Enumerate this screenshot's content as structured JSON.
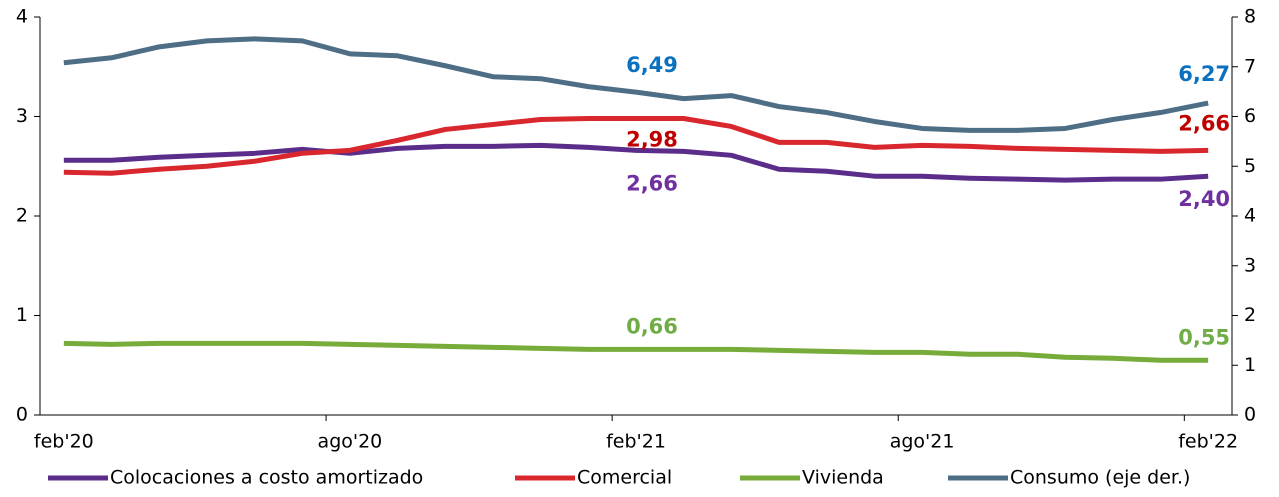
{
  "chart_data": {
    "type": "line",
    "categories": [
      "feb'20",
      null,
      null,
      null,
      null,
      null,
      "ago'20",
      null,
      null,
      null,
      null,
      null,
      "feb'21",
      null,
      null,
      null,
      null,
      null,
      "ago'21",
      null,
      null,
      null,
      null,
      null,
      "feb'22"
    ],
    "ylim": [
      0,
      4
    ],
    "yticks": [
      0,
      1,
      2,
      3,
      4
    ],
    "y2lim": [
      0,
      8
    ],
    "y2ticks": [
      0,
      1,
      2,
      3,
      4,
      5,
      6,
      7,
      8
    ],
    "series": [
      {
        "name": "Colocaciones a costo amortizado",
        "color": "#5b2d8a",
        "label_color": "#7030a0",
        "values": [
          2.56,
          2.56,
          2.59,
          2.61,
          2.63,
          2.67,
          2.63,
          2.68,
          2.7,
          2.7,
          2.71,
          2.69,
          2.66,
          2.65,
          2.61,
          2.47,
          2.45,
          2.4,
          2.4,
          2.38,
          2.37,
          2.36,
          2.37,
          2.37,
          2.4
        ],
        "value_labels": [
          null,
          null,
          null,
          null,
          null,
          null,
          null,
          null,
          null,
          null,
          null,
          null,
          "2,66",
          null,
          null,
          null,
          null,
          null,
          null,
          null,
          null,
          null,
          null,
          null,
          "2,40"
        ]
      },
      {
        "name": "Comercial",
        "color": "#d9272e",
        "label_color": "#c00000",
        "values": [
          2.44,
          2.43,
          2.47,
          2.5,
          2.55,
          2.63,
          2.66,
          2.76,
          2.87,
          2.92,
          2.97,
          2.98,
          2.98,
          2.98,
          2.9,
          2.74,
          2.74,
          2.69,
          2.71,
          2.7,
          2.68,
          2.67,
          2.66,
          2.65,
          2.66
        ],
        "value_labels": [
          null,
          null,
          null,
          null,
          null,
          null,
          null,
          null,
          null,
          null,
          null,
          null,
          "2,98",
          null,
          null,
          null,
          null,
          null,
          null,
          null,
          null,
          null,
          null,
          null,
          "2,66"
        ]
      },
      {
        "name": "Vivienda",
        "color": "#77ab3a",
        "label_color": "#70ad47",
        "values": [
          0.72,
          0.71,
          0.72,
          0.72,
          0.72,
          0.72,
          0.71,
          0.7,
          0.69,
          0.68,
          0.67,
          0.66,
          0.66,
          0.66,
          0.66,
          0.65,
          0.64,
          0.63,
          0.63,
          0.61,
          0.61,
          0.58,
          0.57,
          0.55,
          0.55
        ],
        "value_labels": [
          null,
          null,
          null,
          null,
          null,
          null,
          null,
          null,
          null,
          null,
          null,
          null,
          "0,66",
          null,
          null,
          null,
          null,
          null,
          null,
          null,
          null,
          null,
          null,
          null,
          "0,55"
        ]
      },
      {
        "name": "Consumo (eje der.)",
        "color": "#4e6e86",
        "label_color": "#0a70c0",
        "axis": "y2",
        "values": [
          7.08,
          7.18,
          7.4,
          7.52,
          7.56,
          7.52,
          7.26,
          7.22,
          7.02,
          6.8,
          6.76,
          6.6,
          6.49,
          6.36,
          6.42,
          6.2,
          6.08,
          5.9,
          5.76,
          5.72,
          5.72,
          5.76,
          5.94,
          6.08,
          6.27
        ],
        "value_labels": [
          null,
          null,
          null,
          null,
          null,
          null,
          null,
          null,
          null,
          null,
          null,
          null,
          "6,49",
          null,
          null,
          null,
          null,
          null,
          null,
          null,
          null,
          null,
          null,
          null,
          "6,27"
        ]
      }
    ]
  }
}
